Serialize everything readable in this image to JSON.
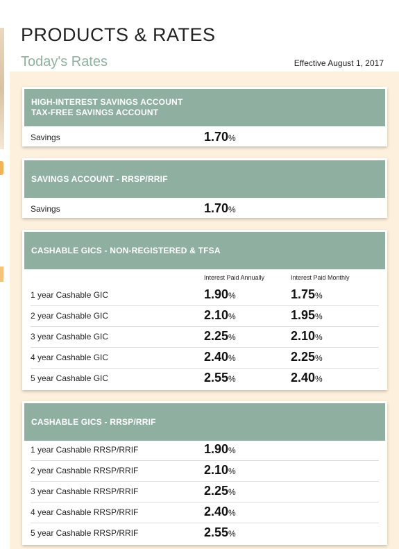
{
  "page": {
    "title": "PRODUCTS & RATES",
    "subtitle": "Today's Rates",
    "effective": "Effective August 1, 2017"
  },
  "percent_sign": "%",
  "cards": [
    {
      "header": [
        "HIGH-INTEREST SAVINGS ACCOUNT",
        "TAX-FREE SAVINGS ACCOUNT"
      ],
      "rows": [
        {
          "label": "Savings",
          "rate": "1.70"
        }
      ]
    },
    {
      "header": [
        "SAVINGS ACCOUNT - RRSP/RRIF"
      ],
      "rows": [
        {
          "label": "Savings",
          "rate": "1.70"
        }
      ]
    },
    {
      "header": [
        "CASHABLE GICS - NON-REGISTERED & TFSA"
      ],
      "columns": [
        "Interest Paid Annually",
        "Interest Paid Monthly"
      ],
      "rows": [
        {
          "label": "1 year Cashable GIC",
          "annual": "1.90",
          "monthly": "1.75"
        },
        {
          "label": "2 year Cashable GIC",
          "annual": "2.10",
          "monthly": "1.95"
        },
        {
          "label": "3 year Cashable GIC",
          "annual": "2.25",
          "monthly": "2.10"
        },
        {
          "label": "4 year Cashable GIC",
          "annual": "2.40",
          "monthly": "2.25"
        },
        {
          "label": "5 year Cashable GIC",
          "annual": "2.55",
          "monthly": "2.40"
        }
      ]
    },
    {
      "header": [
        "CASHABLE GICS - RRSP/RRIF"
      ],
      "rows": [
        {
          "label": "1 year Cashable RRSP/RRIF",
          "rate": "1.90"
        },
        {
          "label": "2 year Cashable RRSP/RRIF",
          "rate": "2.10"
        },
        {
          "label": "3 year Cashable RRSP/RRIF",
          "rate": "2.25"
        },
        {
          "label": "4 year Cashable RRSP/RRIF",
          "rate": "2.40"
        },
        {
          "label": "5 year Cashable RRSP/RRIF",
          "rate": "2.55"
        }
      ]
    }
  ]
}
